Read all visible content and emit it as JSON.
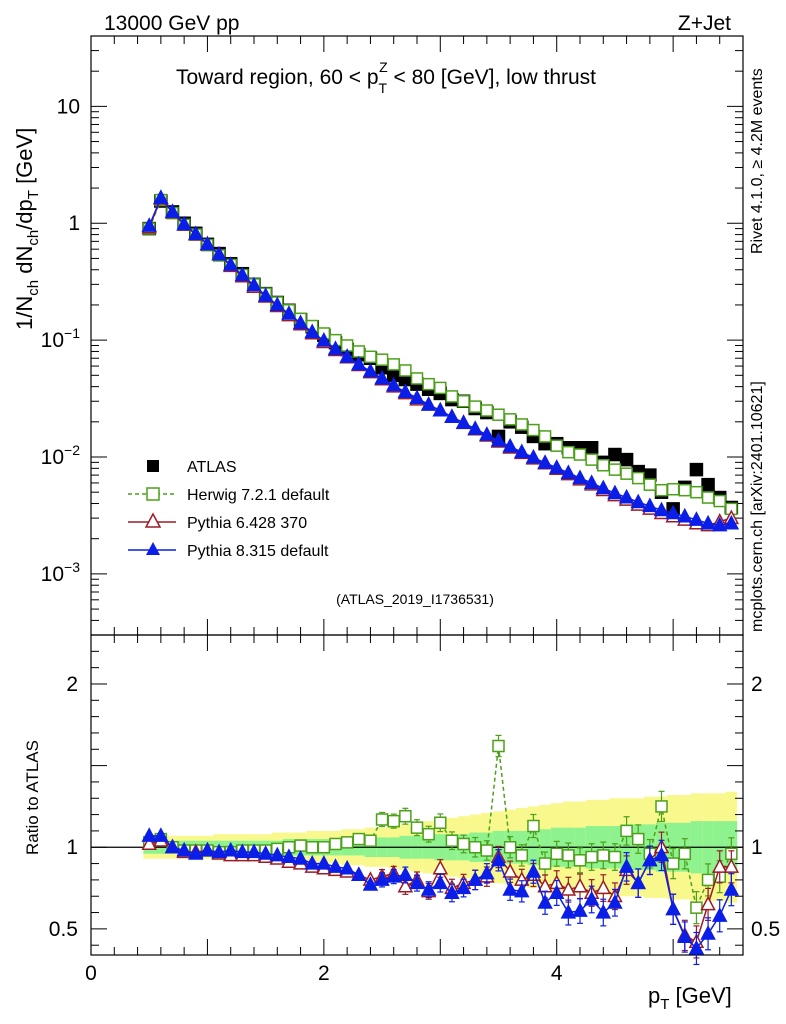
{
  "header": {
    "left": "13000 GeV pp",
    "right": "Z+Jet"
  },
  "side_labels": {
    "rivet": "Rivet 4.1.0, ≥ 4.2M events",
    "mcplots": "mcplots.cern.ch [arXiv:2401.10621]"
  },
  "watermark": "(ATLAS_2019_I1736531)",
  "colors": {
    "atlas": "#000000",
    "herwig": "#4ca01a",
    "pythia6": "#9b1b27",
    "pythia8": "#0b1ee8",
    "band_inner": "#8ef28e",
    "band_outer": "#f8f88c"
  },
  "chart_data": [
    {
      "type": "scatter",
      "panel": "main",
      "title": "Toward region, 60 < p_T^Z < 80 [GeV], low thrust",
      "title_parts": {
        "pre": "Toward region, 60 < p",
        "sub": "T",
        "sup": "Z",
        "post": " < 80 [GeV], low thrust"
      },
      "xlabel": "p_T [GeV]",
      "ylabel": "1/N_ch dN_ch/dp_T [GeV]",
      "xlim": [
        0,
        5.6
      ],
      "ylim": [
        0.0003,
        40
      ],
      "yscale": "log",
      "x_ticks": [
        0,
        2,
        4
      ],
      "y_ticks": [
        {
          "v": 10,
          "b": "10",
          "e": ""
        },
        {
          "v": 1,
          "b": "1",
          "e": ""
        },
        {
          "v": 0.1,
          "b": "10",
          "e": "−1"
        },
        {
          "v": 0.01,
          "b": "10",
          "e": "−2"
        },
        {
          "v": 0.001,
          "b": "10",
          "e": "−3"
        }
      ],
      "legend_position": "middle-left",
      "x": [
        0.5,
        0.6,
        0.7,
        0.8,
        0.9,
        1.0,
        1.1,
        1.2,
        1.3,
        1.4,
        1.5,
        1.6,
        1.7,
        1.8,
        1.9,
        2.0,
        2.1,
        2.2,
        2.3,
        2.4,
        2.5,
        2.6,
        2.7,
        2.8,
        2.9,
        3.0,
        3.1,
        3.2,
        3.3,
        3.4,
        3.5,
        3.6,
        3.7,
        3.8,
        3.9,
        4.0,
        4.1,
        4.2,
        4.3,
        4.4,
        4.5,
        4.6,
        4.7,
        4.8,
        4.9,
        5.0,
        5.1,
        5.2,
        5.3,
        5.4,
        5.5
      ],
      "series": [
        {
          "name": "ATLAS",
          "marker": "filled-square",
          "values": [
            0.9,
            1.55,
            1.25,
            1.0,
            0.82,
            0.66,
            0.55,
            0.45,
            0.37,
            0.3,
            0.25,
            0.21,
            0.18,
            0.15,
            0.13,
            0.11,
            0.095,
            0.083,
            0.075,
            0.07,
            0.058,
            0.05,
            0.046,
            0.042,
            0.038,
            0.035,
            0.031,
            0.03,
            0.026,
            0.024,
            0.015,
            0.02,
            0.018,
            0.015,
            0.013,
            0.013,
            0.012,
            0.012,
            0.012,
            0.009,
            0.0105,
            0.0095,
            0.0075,
            0.007,
            0.005,
            0.0036,
            0.0055,
            0.0078,
            0.0058,
            0.0045,
            0.0037
          ]
        },
        {
          "name": "Herwig 7.2.1 default",
          "marker": "open-square",
          "line": "dashed",
          "values": [
            0.9,
            1.58,
            1.22,
            0.97,
            0.8,
            0.65,
            0.53,
            0.44,
            0.36,
            0.3,
            0.25,
            0.21,
            0.18,
            0.152,
            0.132,
            0.114,
            0.1,
            0.09,
            0.08,
            0.072,
            0.068,
            0.062,
            0.055,
            0.047,
            0.042,
            0.039,
            0.033,
            0.03,
            0.027,
            0.025,
            0.023,
            0.021,
            0.019,
            0.017,
            0.015,
            0.0125,
            0.011,
            0.0105,
            0.0095,
            0.0085,
            0.0078,
            0.0072,
            0.0066,
            0.0058,
            0.0052,
            0.0053,
            0.0052,
            0.005,
            0.0045,
            0.0042,
            0.0036
          ]
        },
        {
          "name": "Pythia 6.428 370",
          "marker": "open-triangle",
          "line": "solid",
          "values": [
            0.92,
            1.62,
            1.24,
            0.97,
            0.8,
            0.66,
            0.54,
            0.43,
            0.35,
            0.285,
            0.235,
            0.195,
            0.163,
            0.136,
            0.114,
            0.096,
            0.082,
            0.071,
            0.061,
            0.053,
            0.046,
            0.04,
            0.035,
            0.031,
            0.028,
            0.025,
            0.022,
            0.0195,
            0.0172,
            0.0152,
            0.0135,
            0.012,
            0.0108,
            0.0097,
            0.0088,
            0.0079,
            0.0071,
            0.0064,
            0.0058,
            0.0052,
            0.0047,
            0.0043,
            0.0039,
            0.0036,
            0.0033,
            0.0031,
            0.0029,
            0.0027,
            0.0026,
            0.0028,
            0.003
          ]
        },
        {
          "name": "Pythia 8.315 default",
          "marker": "filled-triangle",
          "line": "solid",
          "values": [
            0.95,
            1.65,
            1.25,
            0.98,
            0.81,
            0.66,
            0.54,
            0.44,
            0.36,
            0.295,
            0.24,
            0.2,
            0.168,
            0.14,
            0.117,
            0.099,
            0.084,
            0.072,
            0.062,
            0.054,
            0.047,
            0.041,
            0.036,
            0.032,
            0.028,
            0.025,
            0.022,
            0.0196,
            0.0174,
            0.0155,
            0.0138,
            0.0123,
            0.011,
            0.0099,
            0.0089,
            0.0081,
            0.0073,
            0.0066,
            0.006,
            0.0054,
            0.0049,
            0.0045,
            0.0041,
            0.0038,
            0.0035,
            0.0033,
            0.0031,
            0.0029,
            0.0027,
            0.0026,
            0.0027
          ]
        }
      ]
    },
    {
      "type": "line",
      "panel": "ratio",
      "ylabel": "Ratio to ATLAS",
      "xlim": [
        0,
        5.6
      ],
      "ylim": [
        0.34,
        2.3
      ],
      "x_ticks": [
        0,
        2,
        4
      ],
      "y_ticks": [
        0.5,
        1,
        2
      ],
      "x": [
        0.5,
        0.6,
        0.7,
        0.8,
        0.9,
        1.0,
        1.1,
        1.2,
        1.3,
        1.4,
        1.5,
        1.6,
        1.7,
        1.8,
        1.9,
        2.0,
        2.1,
        2.2,
        2.3,
        2.4,
        2.5,
        2.6,
        2.7,
        2.8,
        2.9,
        3.0,
        3.1,
        3.2,
        3.3,
        3.4,
        3.5,
        3.6,
        3.7,
        3.8,
        3.9,
        4.0,
        4.1,
        4.2,
        4.3,
        4.4,
        4.5,
        4.6,
        4.7,
        4.8,
        4.9,
        5.0,
        5.1,
        5.2,
        5.3,
        5.4,
        5.5
      ],
      "bands": {
        "inner": [
          0.04,
          0.04,
          0.04,
          0.04,
          0.04,
          0.04,
          0.04,
          0.04,
          0.04,
          0.04,
          0.04,
          0.04,
          0.05,
          0.05,
          0.05,
          0.05,
          0.05,
          0.05,
          0.05,
          0.06,
          0.06,
          0.06,
          0.07,
          0.07,
          0.07,
          0.08,
          0.08,
          0.08,
          0.09,
          0.09,
          0.1,
          0.1,
          0.1,
          0.11,
          0.11,
          0.12,
          0.12,
          0.12,
          0.13,
          0.13,
          0.13,
          0.14,
          0.14,
          0.14,
          0.15,
          0.15,
          0.15,
          0.16,
          0.16,
          0.16,
          0.16
        ],
        "outer": [
          0.07,
          0.07,
          0.07,
          0.07,
          0.07,
          0.07,
          0.08,
          0.08,
          0.08,
          0.08,
          0.08,
          0.09,
          0.09,
          0.09,
          0.1,
          0.1,
          0.1,
          0.11,
          0.11,
          0.12,
          0.12,
          0.13,
          0.14,
          0.15,
          0.16,
          0.17,
          0.18,
          0.19,
          0.2,
          0.21,
          0.22,
          0.23,
          0.24,
          0.25,
          0.26,
          0.27,
          0.28,
          0.28,
          0.29,
          0.29,
          0.3,
          0.3,
          0.3,
          0.31,
          0.31,
          0.32,
          0.32,
          0.33,
          0.33,
          0.33,
          0.34
        ]
      },
      "series": [
        {
          "name": "Herwig 7.2.1 default",
          "values": [
            1.03,
            1.05,
            1.0,
            0.98,
            0.98,
            0.98,
            0.97,
            0.97,
            0.98,
            0.98,
            0.98,
            0.99,
            1.0,
            1.01,
            1.0,
            1.0,
            1.02,
            1.03,
            1.05,
            1.04,
            1.17,
            1.16,
            1.19,
            1.12,
            1.08,
            1.15,
            1.04,
            1.02,
            1.0,
            0.98,
            1.62,
            1.0,
            0.95,
            1.13,
            0.9,
            0.96,
            0.95,
            0.92,
            0.94,
            0.95,
            0.94,
            1.1,
            1.05,
            0.96,
            1.25,
            0.9,
            0.96,
            0.63,
            0.8,
            0.82,
            0.96
          ]
        },
        {
          "name": "Pythia 6.428 370",
          "values": [
            1.02,
            1.04,
            1.0,
            0.97,
            0.97,
            0.98,
            0.96,
            0.95,
            0.95,
            0.95,
            0.94,
            0.93,
            0.91,
            0.9,
            0.88,
            0.87,
            0.86,
            0.85,
            0.83,
            0.8,
            0.82,
            0.84,
            0.76,
            0.8,
            0.73,
            0.87,
            0.75,
            0.78,
            0.8,
            0.82,
            0.94,
            0.85,
            0.8,
            0.83,
            0.76,
            0.78,
            0.74,
            0.76,
            0.72,
            0.75,
            0.7,
            0.86,
            0.78,
            0.92,
            1.0,
            0.62,
            0.46,
            0.42,
            0.65,
            0.88,
            0.88
          ]
        },
        {
          "name": "Pythia 8.315 default",
          "values": [
            1.07,
            1.07,
            1.0,
            0.98,
            0.96,
            0.98,
            0.97,
            0.98,
            0.97,
            0.97,
            0.96,
            0.95,
            0.94,
            0.93,
            0.9,
            0.9,
            0.88,
            0.87,
            0.83,
            0.77,
            0.8,
            0.82,
            0.83,
            0.78,
            0.74,
            0.78,
            0.72,
            0.75,
            0.8,
            0.84,
            0.92,
            0.74,
            0.73,
            0.85,
            0.66,
            0.72,
            0.6,
            0.61,
            0.68,
            0.6,
            0.66,
            0.88,
            0.78,
            0.92,
            0.95,
            0.62,
            0.45,
            0.38,
            0.47,
            0.58,
            0.74
          ]
        }
      ]
    }
  ]
}
